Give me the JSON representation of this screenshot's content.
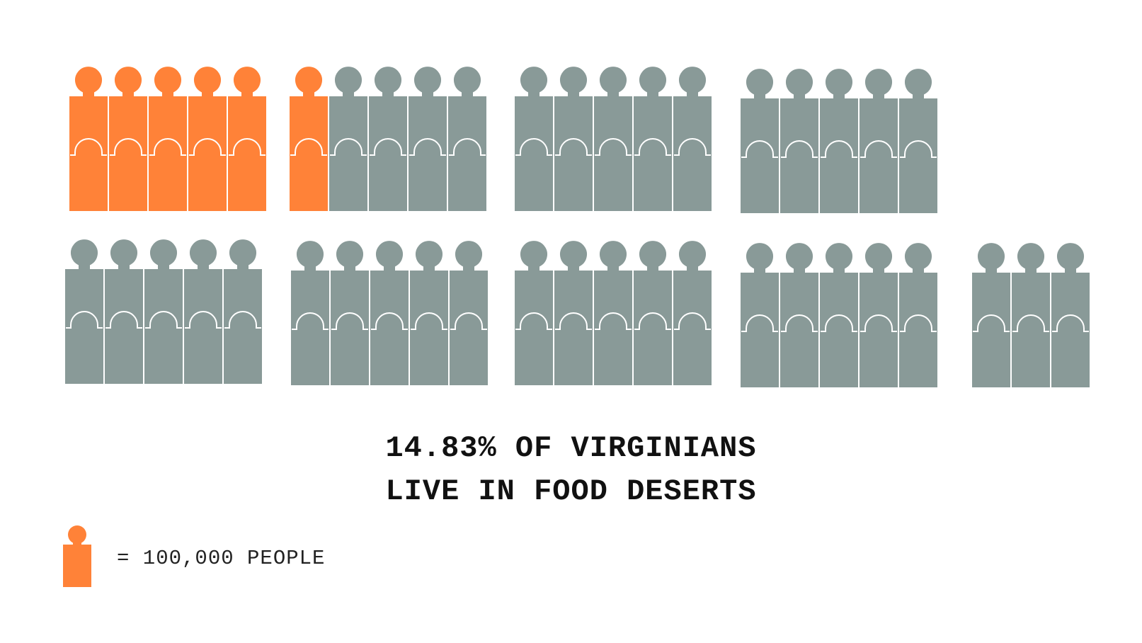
{
  "chart_data": {
    "type": "pictograph",
    "unit_value": 100000,
    "total_icons": 43,
    "highlighted_icons": 6,
    "percentage_label": "14.83%",
    "title_line_1": "14.83% OF VIRGINIANS",
    "title_line_2": "LIVE IN FOOD DESERTS",
    "legend": {
      "label": "= 100,000 PEOPLE"
    },
    "colors": {
      "highlight": "#FF8238",
      "base": "#899A98",
      "outline": "#FFFFFF",
      "text": "#111111"
    },
    "groups": [
      {
        "row": 1,
        "count": 5,
        "highlighted": 5
      },
      {
        "row": 1,
        "count": 5,
        "highlighted": 1
      },
      {
        "row": 1,
        "count": 5,
        "highlighted": 0
      },
      {
        "row": 1,
        "count": 5,
        "highlighted": 0
      },
      {
        "row": 2,
        "count": 5,
        "highlighted": 0
      },
      {
        "row": 2,
        "count": 5,
        "highlighted": 0
      },
      {
        "row": 2,
        "count": 5,
        "highlighted": 0
      },
      {
        "row": 2,
        "count": 5,
        "highlighted": 0
      },
      {
        "row": 2,
        "count": 3,
        "highlighted": 0
      }
    ]
  }
}
